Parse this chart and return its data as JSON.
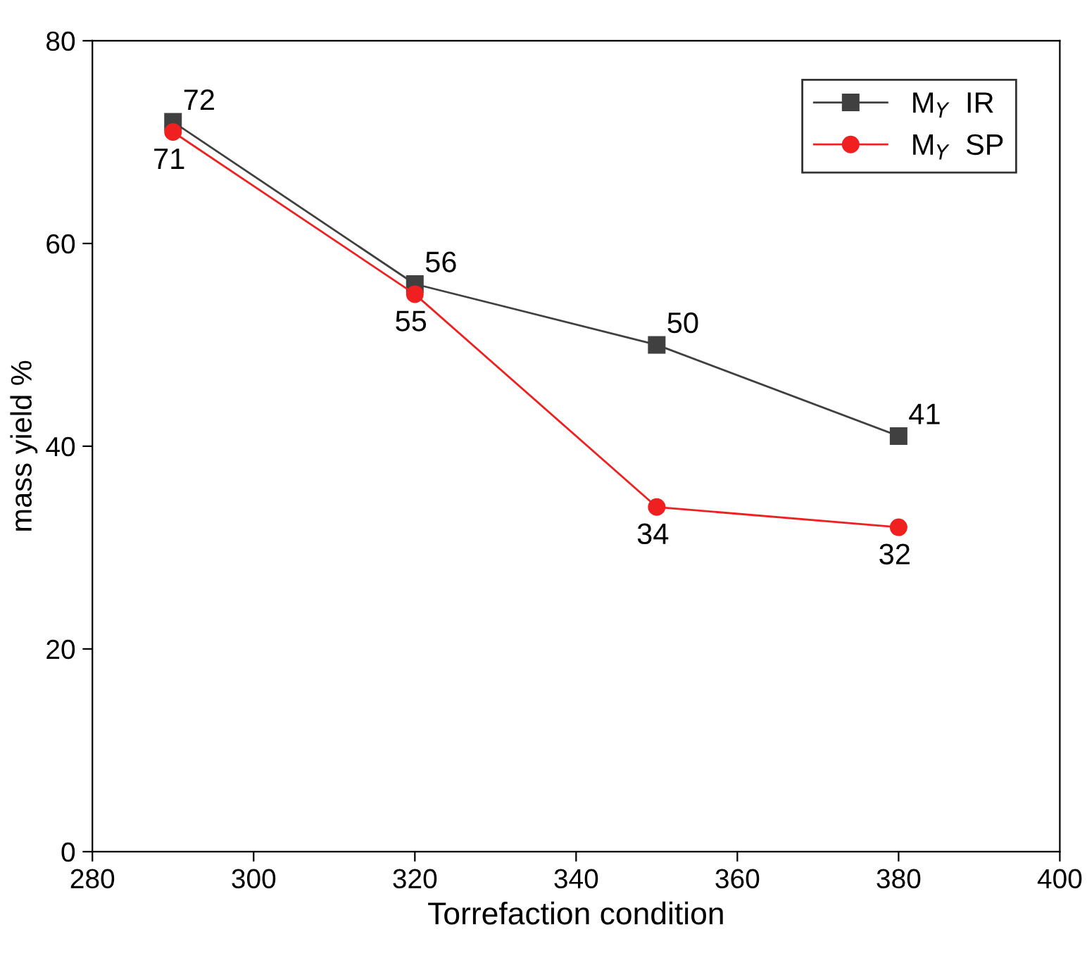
{
  "chart_data": {
    "type": "line",
    "xlabel": "Torrefaction condition",
    "ylabel": "mass yield %",
    "x": [
      290,
      320,
      350,
      380
    ],
    "series": [
      {
        "name": "M$_{Y}$  IR",
        "color": "#404040",
        "marker": "square",
        "values": [
          72,
          56,
          50,
          41
        ]
      },
      {
        "name": "M$_{Y}$  SP",
        "color": "#f02020",
        "marker": "circle",
        "values": [
          71,
          55,
          34,
          32
        ]
      }
    ],
    "xlim": [
      280,
      400
    ],
    "xticks": [
      280,
      300,
      320,
      340,
      360,
      380,
      400
    ],
    "ylim": [
      0,
      80
    ],
    "yticks": [
      0,
      20,
      40,
      60,
      80
    ],
    "data_labels": true,
    "legend": "top right",
    "grid": false,
    "line_style": "solid"
  }
}
